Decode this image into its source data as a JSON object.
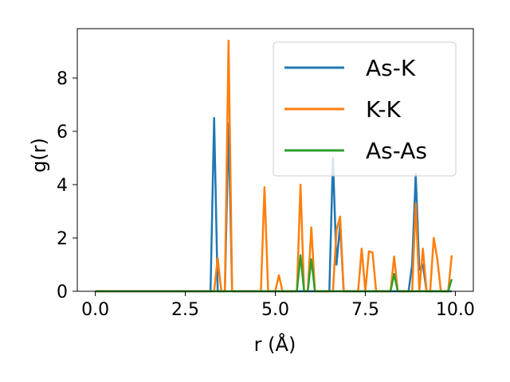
{
  "chart_data": {
    "type": "line",
    "xlabel": "r (Å)",
    "ylabel": "g(r)",
    "xlim": [
      -0.5,
      10.5
    ],
    "ylim": [
      0,
      9.85
    ],
    "xticks": [
      "0.0",
      "2.5",
      "5.0",
      "7.5",
      "10.0"
    ],
    "yticks": [
      "0",
      "2",
      "4",
      "6",
      "8"
    ],
    "legend_position": "top-right",
    "grid": false,
    "series": [
      {
        "name": "As-K",
        "color": "#1f77b4",
        "points": [
          [
            0.0,
            0
          ],
          [
            3.2,
            0
          ],
          [
            3.3,
            6.5
          ],
          [
            3.4,
            0
          ],
          [
            3.6,
            0
          ],
          [
            3.7,
            6.3
          ],
          [
            3.8,
            0
          ],
          [
            6.5,
            0
          ],
          [
            6.6,
            5.0
          ],
          [
            6.7,
            1.0
          ],
          [
            6.8,
            2.5
          ],
          [
            6.9,
            0
          ],
          [
            8.7,
            0
          ],
          [
            8.8,
            1.0
          ],
          [
            8.9,
            4.4
          ],
          [
            9.0,
            0.8
          ],
          [
            9.1,
            1.0
          ],
          [
            9.2,
            0
          ],
          [
            9.9,
            0
          ]
        ]
      },
      {
        "name": "K-K",
        "color": "#ff7f0e",
        "points": [
          [
            0.0,
            0
          ],
          [
            3.3,
            0
          ],
          [
            3.4,
            1.25
          ],
          [
            3.5,
            0
          ],
          [
            3.6,
            0
          ],
          [
            3.7,
            9.4
          ],
          [
            3.8,
            0
          ],
          [
            4.6,
            0
          ],
          [
            4.7,
            3.9
          ],
          [
            4.8,
            0
          ],
          [
            5.0,
            0
          ],
          [
            5.1,
            0.6
          ],
          [
            5.2,
            0
          ],
          [
            5.6,
            0
          ],
          [
            5.7,
            4.0
          ],
          [
            5.8,
            0
          ],
          [
            5.9,
            0
          ],
          [
            6.0,
            2.4
          ],
          [
            6.1,
            0
          ],
          [
            6.6,
            0
          ],
          [
            6.7,
            2.3
          ],
          [
            6.8,
            2.8
          ],
          [
            6.9,
            0
          ],
          [
            7.3,
            0
          ],
          [
            7.4,
            1.6
          ],
          [
            7.5,
            0
          ],
          [
            7.6,
            1.5
          ],
          [
            7.7,
            1.45
          ],
          [
            7.8,
            0
          ],
          [
            8.2,
            0
          ],
          [
            8.3,
            1.3
          ],
          [
            8.4,
            0
          ],
          [
            8.8,
            0
          ],
          [
            8.9,
            3.3
          ],
          [
            9.0,
            0
          ],
          [
            9.1,
            1.6
          ],
          [
            9.2,
            0
          ],
          [
            9.3,
            0
          ],
          [
            9.4,
            2.0
          ],
          [
            9.5,
            1.2
          ],
          [
            9.6,
            0
          ],
          [
            9.8,
            0
          ],
          [
            9.9,
            1.35
          ]
        ]
      },
      {
        "name": "As-As",
        "color": "#2ca02c",
        "points": [
          [
            0.0,
            0
          ],
          [
            5.6,
            0
          ],
          [
            5.7,
            1.35
          ],
          [
            5.8,
            0
          ],
          [
            5.9,
            0
          ],
          [
            6.0,
            1.2
          ],
          [
            6.1,
            0
          ],
          [
            8.2,
            0
          ],
          [
            8.3,
            0.65
          ],
          [
            8.4,
            0
          ],
          [
            9.8,
            0
          ],
          [
            9.9,
            0.45
          ]
        ]
      }
    ]
  }
}
